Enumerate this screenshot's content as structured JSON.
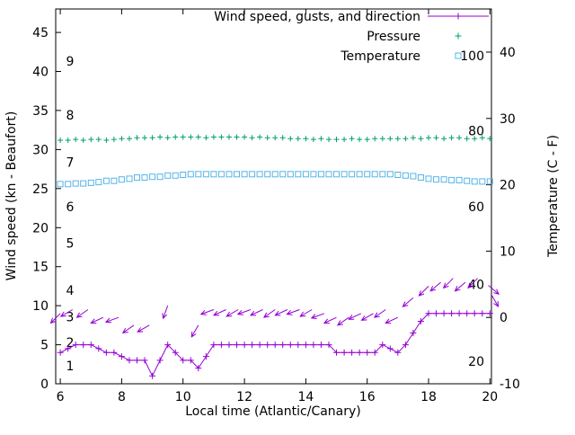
{
  "chart_data": {
    "type": "line",
    "title": "",
    "xlabel": "Local time (Atlantic/Canary)",
    "ylabel_left": "Wind speed (kn - Beaufort)",
    "ylabel_right": "Temperature (C - F)",
    "xlim": [
      5.85,
      20.05
    ],
    "x_ticks": [
      6,
      8,
      10,
      12,
      14,
      16,
      18,
      20
    ],
    "left_lim": [
      0,
      48
    ],
    "left_ticks": [
      0,
      5,
      10,
      15,
      20,
      25,
      30,
      35,
      40,
      45
    ],
    "right_lim": [
      -10,
      46.5
    ],
    "right_ticks": [
      -10,
      0,
      10,
      20,
      30,
      40
    ],
    "grid": false,
    "legend_position": "top-right-inside",
    "colors": {
      "wind": "#9400d3",
      "pressure": "#009e73",
      "temperature": "#56b4e9",
      "axis": "#000000",
      "background": "#ffffff"
    },
    "legend": [
      {
        "label": "Wind speed, gusts, and direction",
        "series": "wind",
        "marker": "line-plus"
      },
      {
        "label": "Pressure",
        "series": "pressure",
        "marker": "plus"
      },
      {
        "label": "Temperature",
        "series": "temperature",
        "marker": "square"
      }
    ],
    "beaufort_labels": [
      {
        "label": "1",
        "kn": 2.3
      },
      {
        "label": "2",
        "kn": 5.3
      },
      {
        "label": "3",
        "kn": 8.6
      },
      {
        "label": "4",
        "kn": 12.0
      },
      {
        "label": "5",
        "kn": 18.0
      },
      {
        "label": "6",
        "kn": 22.7
      },
      {
        "label": "7",
        "kn": 28.4
      },
      {
        "label": "8",
        "kn": 34.4
      },
      {
        "label": "9",
        "kn": 41.3
      }
    ],
    "right_inner_labels": [
      {
        "label": "20",
        "kn": 2.9
      },
      {
        "label": "40",
        "kn": 12.7
      },
      {
        "label": "60",
        "kn": 22.7
      },
      {
        "label": "80",
        "kn": 32.4
      },
      {
        "label": "100",
        "kn": 42.0
      }
    ],
    "x_start": 6,
    "x_step": 0.25,
    "series": {
      "wind_speed_kn": [
        4,
        4.5,
        5,
        5,
        5,
        4.5,
        4,
        4,
        3.5,
        3,
        3,
        3,
        1,
        3,
        5,
        4,
        3,
        3,
        2,
        3.5,
        5,
        5,
        5,
        5,
        5,
        5,
        5,
        5,
        5,
        5,
        5,
        5,
        5,
        5,
        5,
        5,
        4,
        4,
        4,
        4,
        4,
        4,
        5,
        4.5,
        4,
        5,
        6.5,
        8,
        9,
        9,
        9,
        9,
        9,
        9,
        9,
        9,
        9
      ],
      "pressure_left_axis": [
        31.2,
        31.2,
        31.3,
        31.2,
        31.3,
        31.3,
        31.2,
        31.3,
        31.4,
        31.4,
        31.5,
        31.5,
        31.5,
        31.6,
        31.5,
        31.6,
        31.6,
        31.6,
        31.6,
        31.5,
        31.6,
        31.6,
        31.6,
        31.6,
        31.6,
        31.5,
        31.6,
        31.5,
        31.5,
        31.5,
        31.4,
        31.4,
        31.4,
        31.3,
        31.4,
        31.3,
        31.3,
        31.3,
        31.4,
        31.3,
        31.3,
        31.4,
        31.4,
        31.4,
        31.4,
        31.4,
        31.5,
        31.4,
        31.5,
        31.5,
        31.4,
        31.5,
        31.5,
        31.4,
        31.4,
        31.5,
        31.4
      ],
      "temperature_c": [
        20.1,
        20.1,
        20.2,
        20.2,
        20.3,
        20.4,
        20.6,
        20.6,
        20.8,
        20.9,
        21.1,
        21.1,
        21.2,
        21.2,
        21.4,
        21.4,
        21.5,
        21.6,
        21.6,
        21.6,
        21.6,
        21.6,
        21.6,
        21.6,
        21.6,
        21.6,
        21.6,
        21.6,
        21.6,
        21.6,
        21.6,
        21.6,
        21.6,
        21.6,
        21.6,
        21.6,
        21.6,
        21.6,
        21.6,
        21.6,
        21.6,
        21.6,
        21.6,
        21.6,
        21.5,
        21.4,
        21.3,
        21.1,
        20.9,
        20.8,
        20.8,
        20.7,
        20.7,
        20.6,
        20.5,
        20.5,
        20.5
      ],
      "gusts_x_kn_angle": [
        [
          6.0,
          9.0,
          225
        ],
        [
          6.4,
          9.5,
          210
        ],
        [
          6.9,
          9.5,
          215
        ],
        [
          7.4,
          8.5,
          205
        ],
        [
          7.9,
          8.5,
          200
        ],
        [
          8.4,
          7.5,
          215
        ],
        [
          8.9,
          7.5,
          210
        ],
        [
          9.5,
          10.0,
          250
        ],
        [
          10.5,
          7.5,
          240
        ],
        [
          11.0,
          9.5,
          200
        ],
        [
          11.4,
          9.5,
          205
        ],
        [
          11.8,
          9.5,
          210
        ],
        [
          12.2,
          9.5,
          200
        ],
        [
          12.6,
          9.5,
          205
        ],
        [
          13.0,
          9.5,
          215
        ],
        [
          13.4,
          9.5,
          205
        ],
        [
          13.8,
          9.5,
          200
        ],
        [
          14.2,
          9.5,
          210
        ],
        [
          14.6,
          9.0,
          200
        ],
        [
          15.0,
          8.5,
          205
        ],
        [
          15.4,
          8.5,
          215
        ],
        [
          15.8,
          9.0,
          205
        ],
        [
          16.2,
          9.0,
          210
        ],
        [
          16.6,
          9.5,
          215
        ],
        [
          17.0,
          8.5,
          205
        ],
        [
          17.5,
          11.0,
          220
        ],
        [
          18.0,
          12.5,
          225
        ],
        [
          18.4,
          13.0,
          220
        ],
        [
          18.8,
          13.5,
          225
        ],
        [
          19.2,
          13.0,
          220
        ],
        [
          19.6,
          13.5,
          225
        ],
        [
          19.95,
          12.6,
          320
        ],
        [
          20.05,
          11.4,
          300
        ]
      ]
    }
  }
}
